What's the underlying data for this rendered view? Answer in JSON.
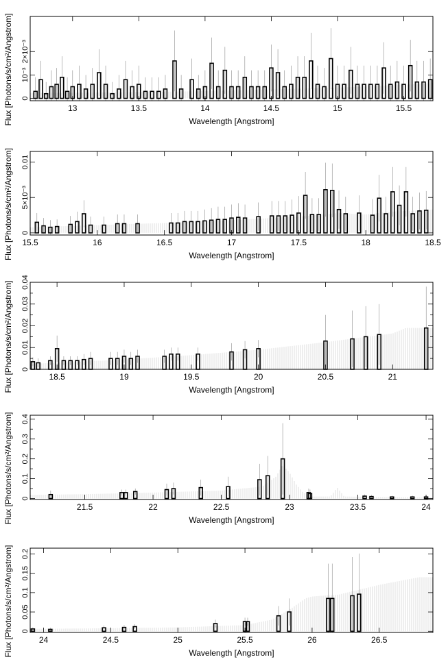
{
  "chart_data": [
    {
      "type": "line",
      "panel": 1,
      "xlabel": "Wavelength [Angstrom]",
      "ylabel": "Flux [Photons/s/cm²/Angstrom]",
      "xlim": [
        12.68,
        15.72
      ],
      "ylim": [
        -0.0001,
        0.0035
      ],
      "x_ticks": [
        13,
        13.5,
        14,
        14.5,
        15,
        15.5
      ],
      "x_tick_labels": [
        "13",
        "13.5",
        "14",
        "14.5",
        "15",
        "15.5"
      ],
      "y_ticks": [
        0,
        0.001,
        0.002
      ],
      "y_tick_labels": [
        "0",
        "10⁻³",
        "2×10⁻³"
      ],
      "series": [
        {
          "role": "model",
          "x": [
            12.68,
            13.0,
            13.5,
            14.0,
            14.5,
            15.0,
            15.5,
            15.72
          ],
          "y": [
            0.00023,
            0.00024,
            0.00027,
            0.00031,
            0.00038,
            0.00046,
            0.00058,
            0.00065
          ]
        },
        {
          "role": "data",
          "x": [
            12.72,
            12.76,
            12.8,
            12.84,
            12.88,
            12.92,
            12.96,
            13.0,
            13.05,
            13.1,
            13.15,
            13.2,
            13.25,
            13.3,
            13.35,
            13.4,
            13.45,
            13.5,
            13.55,
            13.6,
            13.65,
            13.7,
            13.77,
            13.82,
            13.9,
            13.95,
            14.0,
            14.05,
            14.1,
            14.15,
            14.2,
            14.25,
            14.3,
            14.35,
            14.4,
            14.45,
            14.5,
            14.55,
            14.6,
            14.65,
            14.7,
            14.75,
            14.8,
            14.85,
            14.9,
            14.95,
            15.0,
            15.05,
            15.1,
            15.15,
            15.2,
            15.25,
            15.3,
            15.35,
            15.4,
            15.45,
            15.5,
            15.55,
            15.6,
            15.65,
            15.7
          ],
          "y": [
            0.0003,
            0.0008,
            0.0002,
            0.0005,
            0.0006,
            0.0009,
            0.0003,
            0.0005,
            0.0006,
            0.0004,
            0.0006,
            0.0011,
            0.0006,
            0.0002,
            0.0004,
            0.0008,
            0.0005,
            0.0006,
            0.0003,
            0.0003,
            0.0003,
            0.0004,
            0.0016,
            0.0004,
            0.0008,
            0.0004,
            0.0005,
            0.0015,
            0.0005,
            0.0012,
            0.0005,
            0.0005,
            0.0009,
            0.0005,
            0.0005,
            0.0005,
            0.0013,
            0.0011,
            0.0005,
            0.0006,
            0.0009,
            0.0009,
            0.0016,
            0.0006,
            0.0005,
            0.0017,
            0.0006,
            0.0006,
            0.0012,
            0.0006,
            0.0006,
            0.0006,
            0.0006,
            0.0013,
            0.0006,
            0.0007,
            0.0006,
            0.0014,
            0.0007,
            0.0007,
            0.0008
          ],
          "err": [
            0.0006,
            0.0008,
            0.0005,
            0.0007,
            0.0007,
            0.0009,
            0.0006,
            0.0007,
            0.0008,
            0.0006,
            0.0007,
            0.001,
            0.0008,
            0.0005,
            0.0006,
            0.0008,
            0.0007,
            0.0008,
            0.0006,
            0.0006,
            0.0006,
            0.0006,
            0.0013,
            0.0006,
            0.0009,
            0.0006,
            0.0007,
            0.0011,
            0.0007,
            0.001,
            0.0007,
            0.0007,
            0.0009,
            0.0007,
            0.0007,
            0.0007,
            0.001,
            0.001,
            0.0007,
            0.0008,
            0.0009,
            0.0009,
            0.0012,
            0.0008,
            0.0008,
            0.0013,
            0.0008,
            0.0008,
            0.001,
            0.0008,
            0.0008,
            0.0008,
            0.0008,
            0.0011,
            0.0008,
            0.0009,
            0.0008,
            0.0011,
            0.0009,
            0.0009,
            0.0009
          ]
        }
      ]
    },
    {
      "type": "line",
      "panel": 2,
      "xlabel": "Wavelength [Angstrom]",
      "ylabel": "Flux [Photons/s/cm²/Angstrom]",
      "xlim": [
        15.5,
        18.5
      ],
      "ylim": [
        -0.0003,
        0.0115
      ],
      "x_ticks": [
        15.5,
        16,
        16.5,
        17,
        17.5,
        18,
        18.5
      ],
      "x_tick_labels": [
        "15.5",
        "16",
        "16.5",
        "17",
        "17.5",
        "18",
        "18.5"
      ],
      "y_ticks": [
        0,
        0.005,
        0.01
      ],
      "y_tick_labels": [
        "0",
        "5×10⁻³",
        "0.01"
      ],
      "series": [
        {
          "role": "model",
          "x": [
            15.5,
            16.0,
            16.5,
            17.0,
            17.5,
            17.8,
            18.0,
            18.2,
            18.5
          ],
          "y": [
            0.0008,
            0.0011,
            0.0014,
            0.0018,
            0.0023,
            0.0028,
            0.0026,
            0.003,
            0.0033
          ]
        },
        {
          "role": "data",
          "x": [
            15.55,
            15.6,
            15.65,
            15.7,
            15.8,
            15.85,
            15.9,
            15.95,
            16.05,
            16.15,
            16.2,
            16.3,
            16.55,
            16.6,
            16.65,
            16.7,
            16.75,
            16.8,
            16.85,
            16.9,
            16.95,
            17.0,
            17.05,
            17.1,
            17.2,
            17.3,
            17.35,
            17.4,
            17.45,
            17.5,
            17.55,
            17.6,
            17.65,
            17.7,
            17.75,
            17.8,
            17.85,
            17.95,
            18.05,
            18.1,
            18.15,
            18.2,
            18.25,
            18.3,
            18.35,
            18.4,
            18.45
          ],
          "y": [
            0.0015,
            0.001,
            0.0008,
            0.0009,
            0.0012,
            0.0016,
            0.0027,
            0.0011,
            0.0011,
            0.0013,
            0.0013,
            0.0013,
            0.0014,
            0.0014,
            0.0016,
            0.0016,
            0.0016,
            0.0017,
            0.0018,
            0.0019,
            0.0019,
            0.0021,
            0.0022,
            0.0021,
            0.0023,
            0.0024,
            0.0024,
            0.0024,
            0.0025,
            0.0028,
            0.0053,
            0.0026,
            0.0026,
            0.0061,
            0.006,
            0.0033,
            0.0027,
            0.0028,
            0.0025,
            0.0049,
            0.0027,
            0.0058,
            0.0039,
            0.0058,
            0.0027,
            0.0031,
            0.0032
          ],
          "err": [
            0.0013,
            0.0011,
            0.001,
            0.001,
            0.0012,
            0.0014,
            0.0019,
            0.0012,
            0.0012,
            0.0013,
            0.0013,
            0.0013,
            0.0014,
            0.0014,
            0.0015,
            0.0015,
            0.0015,
            0.0016,
            0.0017,
            0.0018,
            0.0018,
            0.0019,
            0.002,
            0.0019,
            0.002,
            0.0021,
            0.0021,
            0.0021,
            0.0022,
            0.0024,
            0.0033,
            0.0023,
            0.0023,
            0.0038,
            0.0038,
            0.0027,
            0.0024,
            0.0025,
            0.0023,
            0.0033,
            0.0024,
            0.0035,
            0.0028,
            0.0035,
            0.0024,
            0.0026,
            0.0027
          ]
        }
      ]
    },
    {
      "type": "line",
      "panel": 3,
      "xlabel": "Wavelength [Angstrom]",
      "ylabel": "Flux [Photons/s/cm²/Angstrom]",
      "xlim": [
        18.3,
        21.3
      ],
      "ylim": [
        0,
        0.04
      ],
      "x_ticks": [
        18.5,
        19,
        19.5,
        20,
        20.5,
        21
      ],
      "x_tick_labels": [
        "18.5",
        "19",
        "19.5",
        "20",
        "20.5",
        "21"
      ],
      "y_ticks": [
        0,
        0.005,
        0.01,
        0.015,
        0.02,
        0.025,
        0.03,
        0.035,
        0.04
      ],
      "y_tick_labels": [
        "0",
        "",
        "0.01",
        "",
        "0.02",
        "",
        "0.03",
        "",
        "0.04"
      ],
      "series": [
        {
          "role": "model",
          "x": [
            18.3,
            18.5,
            19.0,
            19.5,
            20.0,
            20.5,
            21.0,
            21.1,
            21.3
          ],
          "y": [
            0.0025,
            0.003,
            0.0045,
            0.0065,
            0.009,
            0.0125,
            0.0165,
            0.019,
            0.019
          ]
        },
        {
          "role": "data",
          "x": [
            18.32,
            18.36,
            18.45,
            18.5,
            18.55,
            18.6,
            18.65,
            18.7,
            18.75,
            18.9,
            18.95,
            19.0,
            19.05,
            19.1,
            19.3,
            19.35,
            19.4,
            19.55,
            19.8,
            19.9,
            20.0,
            20.5,
            20.7,
            20.8,
            20.9,
            21.25
          ],
          "y": [
            0.0035,
            0.003,
            0.004,
            0.0095,
            0.004,
            0.004,
            0.004,
            0.0045,
            0.005,
            0.005,
            0.005,
            0.006,
            0.005,
            0.006,
            0.006,
            0.007,
            0.007,
            0.007,
            0.008,
            0.009,
            0.0095,
            0.013,
            0.014,
            0.015,
            0.016,
            0.019
          ],
          "err": [
            0.002,
            0.002,
            0.002,
            0.006,
            0.002,
            0.002,
            0.002,
            0.0025,
            0.003,
            0.003,
            0.003,
            0.003,
            0.003,
            0.003,
            0.003,
            0.003,
            0.003,
            0.003,
            0.004,
            0.004,
            0.004,
            0.012,
            0.013,
            0.014,
            0.014,
            0.019
          ]
        }
      ]
    },
    {
      "type": "line",
      "panel": 4,
      "xlabel": "Wavelength [Angstrom]",
      "ylabel": "Flux [Photons/s/cm²/Angstrom]",
      "xlim": [
        21.1,
        24.05
      ],
      "ylim": [
        -0.005,
        0.42
      ],
      "x_ticks": [
        21.5,
        22,
        22.5,
        23,
        23.5,
        24
      ],
      "x_tick_labels": [
        "21.5",
        "22",
        "22.5",
        "23",
        "23.5",
        "24"
      ],
      "y_ticks": [
        0,
        0.05,
        0.1,
        0.15,
        0.2,
        0.25,
        0.3,
        0.35,
        0.4
      ],
      "y_tick_labels": [
        "0",
        "",
        "0.1",
        "",
        "0.2",
        "",
        "0.3",
        "",
        "0.4"
      ],
      "series": [
        {
          "role": "model",
          "x": [
            21.1,
            21.5,
            22.0,
            22.5,
            22.8,
            22.9,
            22.95,
            23.0,
            23.05,
            23.1,
            23.15,
            23.3,
            23.35,
            23.4,
            24.05
          ],
          "y": [
            0.018,
            0.022,
            0.03,
            0.04,
            0.06,
            0.11,
            0.17,
            0.13,
            0.07,
            0.03,
            0.01,
            0.01,
            0.055,
            0.01,
            0.005
          ]
        },
        {
          "role": "data",
          "x": [
            21.25,
            21.77,
            21.8,
            21.87,
            22.1,
            22.15,
            22.35,
            22.55,
            22.78,
            22.84,
            22.95,
            23.14,
            23.15,
            23.55,
            23.6,
            23.75,
            23.9,
            24.0
          ],
          "y": [
            0.02,
            0.03,
            0.03,
            0.035,
            0.045,
            0.05,
            0.055,
            0.06,
            0.095,
            0.115,
            0.2,
            0.03,
            0.025,
            0.012,
            0.01,
            0.008,
            0.008,
            0.008
          ],
          "err": [
            0.02,
            0.015,
            0.015,
            0.015,
            0.03,
            0.03,
            0.04,
            0.05,
            0.08,
            0.1,
            0.18,
            0.02,
            0.02,
            0.008,
            0.008,
            0.006,
            0.006,
            0.006
          ]
        }
      ]
    },
    {
      "type": "line",
      "panel": 5,
      "xlabel": "Wavelength [Angstrom]",
      "ylabel": "Flux [Photons/s/cm²/Angstrom]",
      "xlim": [
        23.9,
        26.9
      ],
      "ylim": [
        -0.003,
        0.215
      ],
      "x_ticks": [
        24,
        24.5,
        25,
        25.5,
        26,
        26.5
      ],
      "x_tick_labels": [
        "24",
        "24.5",
        "25",
        "25.5",
        "26",
        "26.5"
      ],
      "y_ticks": [
        0,
        0.05,
        0.1,
        0.15,
        0.2
      ],
      "y_tick_labels": [
        "0",
        "0.05",
        "0.1",
        "0.15",
        "0.2"
      ],
      "series": [
        {
          "role": "model",
          "x": [
            23.9,
            24.5,
            25.0,
            25.5,
            25.7,
            25.85,
            25.95,
            26.0,
            26.2,
            26.5,
            26.8,
            26.9
          ],
          "y": [
            0.006,
            0.008,
            0.01,
            0.016,
            0.03,
            0.06,
            0.085,
            0.09,
            0.095,
            0.12,
            0.14,
            0.14
          ]
        },
        {
          "role": "data",
          "x": [
            23.92,
            24.05,
            24.45,
            24.6,
            24.68,
            25.28,
            25.5,
            25.52,
            25.75,
            25.83,
            26.12,
            26.15,
            26.3,
            26.35
          ],
          "y": [
            0.006,
            0.005,
            0.009,
            0.01,
            0.012,
            0.02,
            0.025,
            0.025,
            0.04,
            0.05,
            0.085,
            0.085,
            0.092,
            0.096
          ],
          "err": [
            0.004,
            0.004,
            0.006,
            0.006,
            0.006,
            0.01,
            0.01,
            0.01,
            0.025,
            0.035,
            0.09,
            0.09,
            0.1,
            0.105
          ]
        }
      ]
    }
  ]
}
